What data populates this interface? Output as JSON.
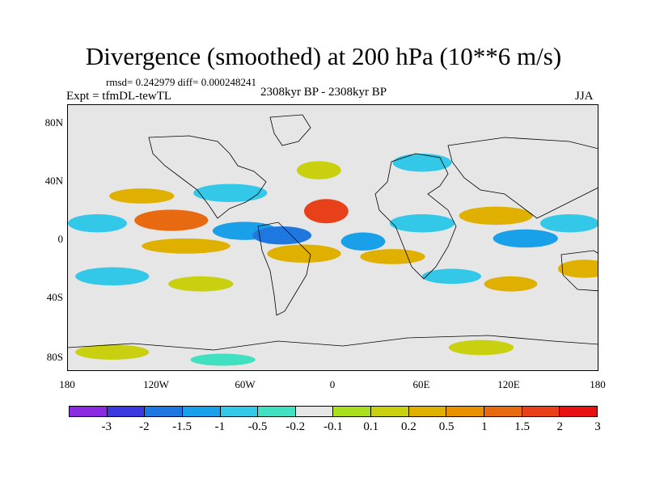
{
  "title": "Divergence (smoothed) at 200 hPa (10**6 m/s)",
  "stats": "rmsd= 0.242979 diff= 0.000248241",
  "expt": "Expt = tfmDL-tewTL",
  "period": "2308kyr BP - 2308kyr BP",
  "season": "JJA",
  "lat_labels": [
    "80N",
    "40N",
    "0",
    "40S",
    "80S"
  ],
  "lon_labels": [
    "180",
    "120W",
    "60W",
    "0",
    "60E",
    "120E",
    "180"
  ],
  "colorbar": {
    "colors": [
      "#8a2be2",
      "#3a3ae0",
      "#1f78e0",
      "#1aa0e8",
      "#33c8e8",
      "#40e0c0",
      "#e6e6e6",
      "#a8e020",
      "#c8d010",
      "#e0b000",
      "#e89000",
      "#e86a10",
      "#e84018",
      "#e81010"
    ],
    "labels": [
      "-3",
      "-2",
      "-1.5",
      "-1",
      "-0.5",
      "-0.2",
      "-0.1",
      "0.1",
      "0.2",
      "0.5",
      "1",
      "1.5",
      "2",
      "3"
    ]
  },
  "field_blobs": [
    {
      "lon": -160,
      "lat": 10,
      "rx": 20,
      "ry": 6,
      "v": -0.5
    },
    {
      "lon": -110,
      "lat": 12,
      "rx": 25,
      "ry": 7,
      "v": 1.5
    },
    {
      "lon": -100,
      "lat": -5,
      "rx": 30,
      "ry": 5,
      "v": 0.5
    },
    {
      "lon": -60,
      "lat": 5,
      "rx": 22,
      "ry": 6,
      "v": -1
    },
    {
      "lon": -35,
      "lat": 2,
      "rx": 20,
      "ry": 6,
      "v": -1.5
    },
    {
      "lon": -130,
      "lat": 28,
      "rx": 22,
      "ry": 5,
      "v": 0.5
    },
    {
      "lon": -70,
      "lat": 30,
      "rx": 25,
      "ry": 6,
      "v": -0.5
    },
    {
      "lon": -20,
      "lat": -10,
      "rx": 25,
      "ry": 6,
      "v": 0.5
    },
    {
      "lon": -5,
      "lat": 18,
      "rx": 15,
      "ry": 8,
      "v": 2
    },
    {
      "lon": 20,
      "lat": -2,
      "rx": 15,
      "ry": 6,
      "v": -1
    },
    {
      "lon": 40,
      "lat": -12,
      "rx": 22,
      "ry": 5,
      "v": 0.5
    },
    {
      "lon": 60,
      "lat": 10,
      "rx": 22,
      "ry": 6,
      "v": -0.5
    },
    {
      "lon": 110,
      "lat": 15,
      "rx": 25,
      "ry": 6,
      "v": 0.5
    },
    {
      "lon": 130,
      "lat": 0,
      "rx": 22,
      "ry": 6,
      "v": -1
    },
    {
      "lon": 160,
      "lat": 10,
      "rx": 20,
      "ry": 6,
      "v": -0.5
    },
    {
      "lon": 170,
      "lat": -20,
      "rx": 18,
      "ry": 6,
      "v": 0.5
    },
    {
      "lon": -150,
      "lat": -25,
      "rx": 25,
      "ry": 6,
      "v": -0.5
    },
    {
      "lon": -90,
      "lat": -30,
      "rx": 22,
      "ry": 5,
      "v": 0.2
    },
    {
      "lon": 80,
      "lat": -25,
      "rx": 20,
      "ry": 5,
      "v": -0.5
    },
    {
      "lon": 120,
      "lat": -30,
      "rx": 18,
      "ry": 5,
      "v": 0.5
    },
    {
      "lon": -10,
      "lat": 45,
      "rx": 15,
      "ry": 6,
      "v": 0.2
    },
    {
      "lon": 60,
      "lat": 50,
      "rx": 20,
      "ry": 6,
      "v": -0.5
    },
    {
      "lon": -150,
      "lat": -75,
      "rx": 25,
      "ry": 5,
      "v": 0.2
    },
    {
      "lon": -75,
      "lat": -80,
      "rx": 22,
      "ry": 4,
      "v": -0.2
    },
    {
      "lon": 100,
      "lat": -72,
      "rx": 22,
      "ry": 5,
      "v": 0.2
    }
  ]
}
